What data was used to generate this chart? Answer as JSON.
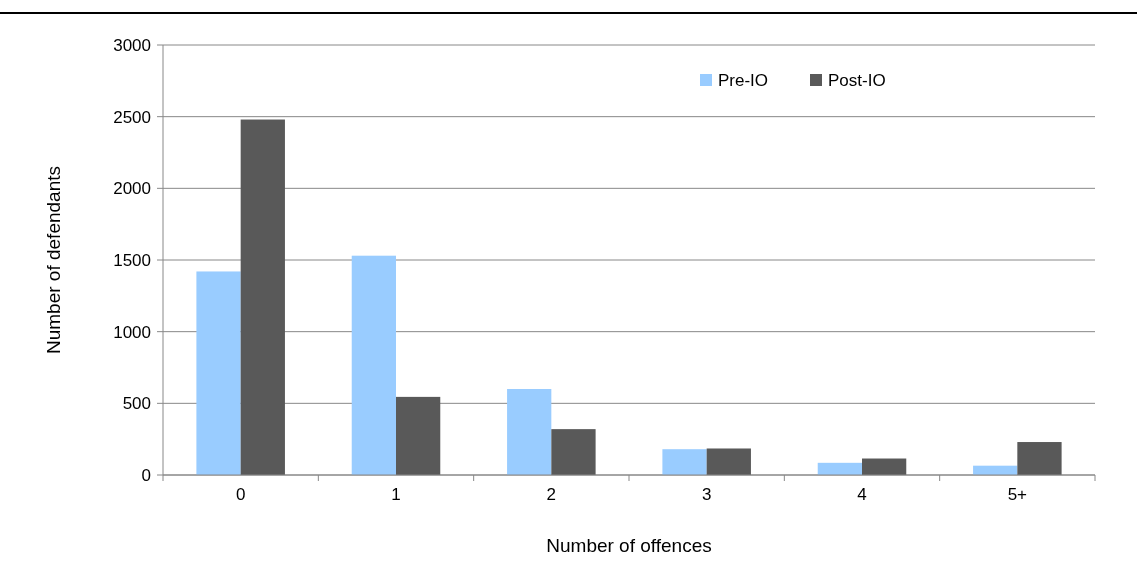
{
  "chart_data": {
    "type": "bar",
    "xlabel": "Number of offences",
    "ylabel": "Number of defendants",
    "categories": [
      "0",
      "1",
      "2",
      "3",
      "4",
      "5+"
    ],
    "series": [
      {
        "name": "Pre-IO",
        "color": "#99ccff",
        "values": [
          1420,
          1530,
          600,
          180,
          85,
          65
        ]
      },
      {
        "name": "Post-IO",
        "color": "#595959",
        "values": [
          2480,
          545,
          320,
          185,
          115,
          230
        ]
      }
    ],
    "ylim": [
      0,
      3000
    ],
    "yticks": [
      0,
      500,
      1000,
      1500,
      2000,
      2500,
      3000
    ],
    "grid": "y",
    "legend": "top right"
  }
}
